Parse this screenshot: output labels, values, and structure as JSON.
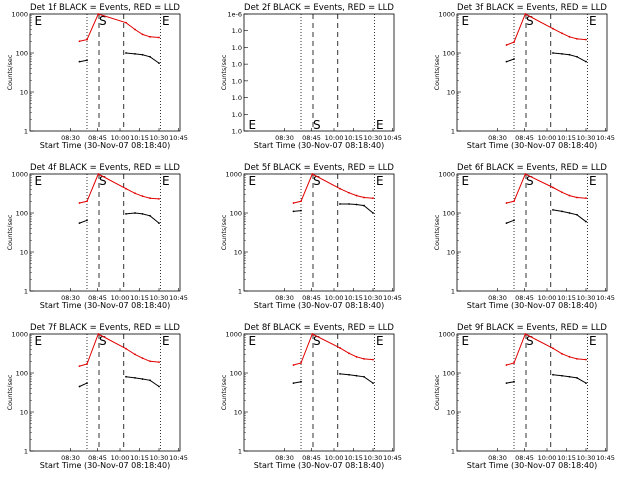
{
  "colors": {
    "events": "#000000",
    "lld": "#e00000",
    "axes": "#000000",
    "background": "#ffffff"
  },
  "chart_data": [
    {
      "type": "line",
      "title": "Det 1f BLACK = Events, RED = LLD",
      "xlabel": "Start Time (30-Nov-07 08:18:40)",
      "ylabel": "Counts/sec",
      "x_ticks": [
        "08:30",
        "08:45",
        "10:00",
        "10:15",
        "10:30",
        "10:45"
      ],
      "y_ticks": [
        "1",
        "10",
        "100",
        "1000"
      ],
      "y_scale": "log",
      "flags": [
        "E",
        "S",
        "E"
      ],
      "y_range": [
        1,
        1000
      ],
      "empty": false,
      "series": [
        {
          "name": "Events",
          "values": [
            60,
            65,
            null,
            100,
            95,
            90,
            80,
            55
          ]
        },
        {
          "name": "LLD",
          "values": [
            200,
            220,
            1000,
            600,
            400,
            300,
            260,
            250
          ]
        }
      ]
    },
    {
      "type": "line",
      "title": "Det 2f BLACK = Events, RED = LLD",
      "xlabel": "Start Time (30-Nov-07 08:18:40)",
      "ylabel": "Counts/sec",
      "x_ticks": [
        "08:30",
        "08:45",
        "10:00",
        "10:15",
        "10:30",
        "10:45"
      ],
      "y_ticks": [
        "1.0",
        "1.0",
        "1.0",
        "1.0",
        "1.0",
        "1.0",
        "1.0",
        "1e-6"
      ],
      "y_scale": "linear",
      "flags": [
        "E",
        "S",
        "E"
      ],
      "empty": true,
      "series": []
    },
    {
      "type": "line",
      "title": "Det 3f BLACK = Events, RED = LLD",
      "xlabel": "Start Time (30-Nov-07 08:18:40)",
      "ylabel": "Counts/sec",
      "x_ticks": [
        "08:30",
        "08:45",
        "10:00",
        "10:15",
        "10:30",
        "10:45"
      ],
      "y_ticks": [
        "1",
        "10",
        "100",
        "1000"
      ],
      "y_scale": "log",
      "flags": [
        "E",
        "S",
        "E"
      ],
      "y_range": [
        1,
        1000
      ],
      "empty": false,
      "series": [
        {
          "name": "Events",
          "values": [
            60,
            70,
            null,
            100,
            95,
            90,
            80,
            60
          ]
        },
        {
          "name": "LLD",
          "values": [
            160,
            190,
            1000,
            420,
            320,
            260,
            230,
            220
          ]
        }
      ]
    },
    {
      "type": "line",
      "title": "Det 4f BLACK = Events, RED = LLD",
      "xlabel": "Start Time (30-Nov-07 08:18:40)",
      "ylabel": "Counts/sec",
      "x_ticks": [
        "08:30",
        "08:45",
        "10:00",
        "10:15",
        "10:30",
        "10:45"
      ],
      "y_ticks": [
        "1",
        "10",
        "100",
        "1000"
      ],
      "y_scale": "log",
      "flags": [
        "E",
        "S",
        "E"
      ],
      "y_range": [
        1,
        1000
      ],
      "empty": false,
      "series": [
        {
          "name": "Events",
          "values": [
            55,
            65,
            null,
            95,
            100,
            95,
            85,
            55
          ]
        },
        {
          "name": "LLD",
          "values": [
            180,
            200,
            1000,
            420,
            320,
            270,
            240,
            230
          ]
        }
      ]
    },
    {
      "type": "line",
      "title": "Det 5f BLACK = Events, RED = LLD",
      "xlabel": "Start Time (30-Nov-07 08:18:40)",
      "ylabel": "Counts/sec",
      "x_ticks": [
        "08:30",
        "08:45",
        "10:00",
        "10:15",
        "10:30",
        "10:45"
      ],
      "y_ticks": [
        "1",
        "10",
        "100",
        "1000"
      ],
      "y_scale": "log",
      "flags": [
        "E",
        "S",
        "E"
      ],
      "y_range": [
        1,
        1000
      ],
      "empty": false,
      "series": [
        {
          "name": "Events",
          "values": [
            110,
            115,
            null,
            170,
            170,
            165,
            155,
            100
          ]
        },
        {
          "name": "LLD",
          "values": [
            180,
            200,
            1000,
            420,
            330,
            280,
            250,
            240
          ]
        }
      ]
    },
    {
      "type": "line",
      "title": "Det 6f BLACK = Events, RED = LLD",
      "xlabel": "Start Time (30-Nov-07 08:18:40)",
      "ylabel": "Counts/sec",
      "x_ticks": [
        "08:30",
        "08:45",
        "10:00",
        "10:15",
        "10:30",
        "10:45"
      ],
      "y_ticks": [
        "1",
        "10",
        "100",
        "1000"
      ],
      "y_scale": "log",
      "flags": [
        "E",
        "S",
        "E"
      ],
      "y_range": [
        1,
        1000
      ],
      "empty": false,
      "series": [
        {
          "name": "Events",
          "values": [
            55,
            65,
            null,
            120,
            110,
            100,
            90,
            60
          ]
        },
        {
          "name": "LLD",
          "values": [
            180,
            200,
            1000,
            450,
            340,
            280,
            250,
            240
          ]
        }
      ]
    },
    {
      "type": "line",
      "title": "Det 7f BLACK = Events, RED = LLD",
      "xlabel": "Start Time (30-Nov-07 08:18:40)",
      "ylabel": "Counts/sec",
      "x_ticks": [
        "08:30",
        "08:45",
        "10:00",
        "10:15",
        "10:30",
        "10:45"
      ],
      "y_ticks": [
        "1",
        "10",
        "100",
        "1000"
      ],
      "y_scale": "log",
      "flags": [
        "E",
        "S",
        "E"
      ],
      "y_range": [
        1,
        1000
      ],
      "empty": false,
      "series": [
        {
          "name": "Events",
          "values": [
            45,
            55,
            null,
            80,
            75,
            70,
            65,
            45
          ]
        },
        {
          "name": "LLD",
          "values": [
            150,
            170,
            1000,
            420,
            300,
            240,
            200,
            190
          ]
        }
      ]
    },
    {
      "type": "line",
      "title": "Det 8f BLACK = Events, RED = LLD",
      "xlabel": "Start Time (30-Nov-07 08:18:40)",
      "ylabel": "Counts/sec",
      "x_ticks": [
        "08:30",
        "08:45",
        "10:00",
        "10:15",
        "10:30",
        "10:45"
      ],
      "y_ticks": [
        "1",
        "10",
        "100",
        "1000"
      ],
      "y_scale": "log",
      "flags": [
        "E",
        "S",
        "E"
      ],
      "y_range": [
        1,
        1000
      ],
      "empty": false,
      "series": [
        {
          "name": "Events",
          "values": [
            55,
            60,
            null,
            95,
            90,
            85,
            80,
            55
          ]
        },
        {
          "name": "LLD",
          "values": [
            160,
            180,
            1000,
            440,
            320,
            260,
            230,
            220
          ]
        }
      ]
    },
    {
      "type": "line",
      "title": "Det 9f BLACK = Events, RED = LLD",
      "xlabel": "Start Time (30-Nov-07 08:18:40)",
      "ylabel": "Counts/sec",
      "x_ticks": [
        "08:30",
        "08:45",
        "10:00",
        "10:15",
        "10:30",
        "10:45"
      ],
      "y_ticks": [
        "1",
        "10",
        "100",
        "1000"
      ],
      "y_scale": "log",
      "flags": [
        "E",
        "S",
        "E"
      ],
      "y_range": [
        1,
        1000
      ],
      "empty": false,
      "series": [
        {
          "name": "Events",
          "values": [
            55,
            60,
            null,
            90,
            85,
            80,
            75,
            55
          ]
        },
        {
          "name": "LLD",
          "values": [
            160,
            180,
            1000,
            430,
            310,
            260,
            230,
            220
          ]
        }
      ]
    }
  ]
}
